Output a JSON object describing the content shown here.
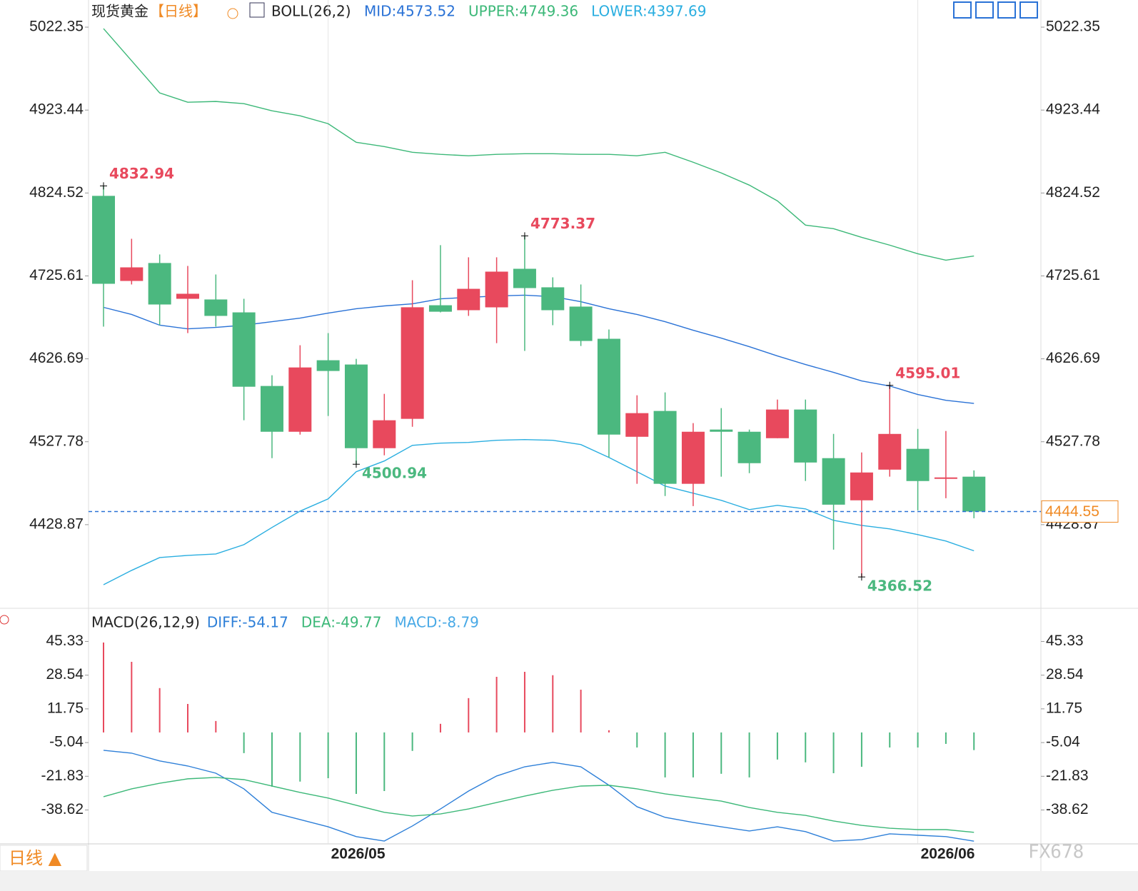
{
  "chart_data": [
    {
      "type": "candlestick",
      "title": "现货黄金",
      "period": "【日线】",
      "indicator": "BOLL(26,2)",
      "categories": [
        null,
        null,
        null,
        null,
        null,
        null,
        null,
        null,
        "2026/05",
        null,
        null,
        null,
        null,
        null,
        null,
        null,
        null,
        null,
        null,
        null,
        null,
        null,
        null,
        null,
        null,
        null,
        null,
        null,
        null,
        "2026/06",
        null,
        null
      ],
      "open": [
        4821.1,
        4719.6,
        4741.0,
        4698.3,
        4697.5,
        4682.1,
        4594.3,
        4539.7,
        4625.0,
        4619.9,
        4520.1,
        4555.1,
        4690.6,
        4684.7,
        4688.1,
        4734.1,
        4712.0,
        4689.0,
        4650.6,
        4533.7,
        4564.5,
        4477.6,
        4542.3,
        4539.7,
        4532.0,
        4566.2,
        4508.2,
        4457.9,
        4494.5,
        4519.3,
        4483.5,
        4486.1
      ],
      "high": [
        4832.94,
        4769.9,
        4751.2,
        4737.5,
        4727.3,
        4698.3,
        4607.1,
        4642.9,
        4657.4,
        4626.7,
        4584.9,
        4720.5,
        4762.3,
        4747.8,
        4747.8,
        4773.37,
        4723.9,
        4715.4,
        4661.7,
        4583.2,
        4586.6,
        4550.0,
        4567.9,
        4542.3,
        4578.1,
        4578.1,
        4537.1,
        4515.0,
        4595.01,
        4543.1,
        4540.6,
        4493.6
      ],
      "low": [
        4665.1,
        4715.4,
        4666.8,
        4657.4,
        4665.1,
        4553.4,
        4508.2,
        4536.3,
        4558.5,
        4500.94,
        4511.6,
        4545.7,
        4682.1,
        4677.9,
        4645.4,
        4636.1,
        4666.8,
        4642.0,
        4509.0,
        4477.6,
        4463.0,
        4451.0,
        4486.1,
        4490.3,
        4532.0,
        4481.0,
        4399.0,
        4366.52,
        4486.1,
        4445.9,
        4460.4,
        4436.5
      ],
      "close": [
        4716.2,
        4735.8,
        4691.5,
        4704.3,
        4677.9,
        4593.4,
        4539.7,
        4616.4,
        4612.2,
        4520.1,
        4553.4,
        4688.2,
        4682.9,
        4710.2,
        4730.7,
        4711.1,
        4684.7,
        4648.0,
        4536.3,
        4561.9,
        4477.6,
        4539.7,
        4539.7,
        4502.2,
        4566.2,
        4503.0,
        4452.7,
        4491.1,
        4537.1,
        4480.9,
        4485.2,
        4444.55
      ],
      "up_color": "#e8495d",
      "down_color": "#4bb87f",
      "high_value_labels": [
        "4832.94",
        null,
        null,
        null,
        null,
        null,
        null,
        null,
        null,
        null,
        null,
        null,
        null,
        null,
        null,
        "4773.37",
        null,
        null,
        null,
        null,
        null,
        null,
        null,
        null,
        null,
        null,
        null,
        null,
        "4595.01",
        null,
        null,
        null
      ],
      "low_value_labels": [
        null,
        null,
        null,
        null,
        null,
        null,
        null,
        null,
        null,
        "4500.94",
        null,
        null,
        null,
        null,
        null,
        null,
        null,
        null,
        null,
        null,
        null,
        null,
        null,
        null,
        null,
        null,
        null,
        "4366.52",
        null,
        null,
        null,
        null
      ],
      "series": [
        {
          "name": "MID:4573.52",
          "color": "#2a72d6",
          "values": [
            4688.1,
            4679.6,
            4666.8,
            4662.5,
            4664.2,
            4666.8,
            4671.0,
            4675.3,
            4681.2,
            4686.4,
            4689.8,
            4692.3,
            4698.3,
            4700.0,
            4701.7,
            4702.6,
            4700.9,
            4694.9,
            4686.4,
            4679.6,
            4671.0,
            4660.8,
            4651.4,
            4641.2,
            4630.1,
            4619.9,
            4610.5,
            4600.3,
            4594.3,
            4584.1,
            4577.2,
            4573.52
          ]
        },
        {
          "name": "UPPER:4749.36",
          "color": "#3cb878",
          "values": [
            5020.6,
            4982.3,
            4943.9,
            4932.8,
            4933.7,
            4931.1,
            4922.6,
            4916.6,
            4907.2,
            4885.0,
            4879.9,
            4873.1,
            4870.6,
            4868.9,
            4870.6,
            4871.4,
            4871.4,
            4870.6,
            4870.6,
            4868.9,
            4873.1,
            4861.2,
            4848.4,
            4833.9,
            4815.1,
            4786.2,
            4781.9,
            4771.6,
            4762.3,
            4752.0,
            4744.4,
            4749.36
          ]
        },
        {
          "name": "LOWER:4397.69",
          "color": "#2aaee0",
          "values": [
            4357.2,
            4374.3,
            4389.6,
            4392.2,
            4393.9,
            4405.0,
            4425.5,
            4445.0,
            4459.6,
            4492.0,
            4504.8,
            4523.5,
            4526.1,
            4527.0,
            4529.5,
            4530.4,
            4529.5,
            4524.4,
            4509.0,
            4492.0,
            4474.9,
            4466.4,
            4457.9,
            4446.8,
            4451.9,
            4447.7,
            4434.0,
            4428.0,
            4423.8,
            4417.0,
            4409.3,
            4397.69
          ]
        }
      ],
      "ylim": [
        4330.81,
        5050.49
      ],
      "yticks": [
        5022.35,
        4923.44,
        4824.52,
        4725.61,
        4626.69,
        4527.78,
        4428.87
      ],
      "last_price_color": "#f08a24"
    },
    {
      "type": "macd",
      "title": "MACD(26,12,9)",
      "ylim": [
        -54.8,
        51.9
      ],
      "yticks": [
        45.33,
        28.54,
        11.75,
        -5.04,
        -21.83,
        -38.62
      ],
      "up_color": "#e8495d",
      "down_color": "#4bb87f",
      "series": [
        {
          "name": "DIFF:-54.17",
          "color": "#2d7fd8",
          "values": [
            -8.9,
            -10.3,
            -14.2,
            -16.7,
            -20.3,
            -28.1,
            -39.8,
            -43.4,
            -47.0,
            -51.9,
            -54.1,
            -46.6,
            -38.1,
            -29.2,
            -21.7,
            -17.1,
            -14.9,
            -17.1,
            -26.3,
            -37.0,
            -42.3,
            -44.8,
            -47.0,
            -49.1,
            -47.0,
            -49.4,
            -54.1,
            -53.4,
            -50.5,
            -51.2,
            -51.9,
            -54.17
          ]
        },
        {
          "name": "DEA:-49.77",
          "color": "#3cb878",
          "values": [
            -32.0,
            -28.1,
            -25.3,
            -23.1,
            -22.4,
            -23.5,
            -26.7,
            -29.9,
            -32.7,
            -36.3,
            -39.8,
            -41.6,
            -40.6,
            -38.1,
            -34.9,
            -31.7,
            -28.8,
            -26.7,
            -26.3,
            -28.1,
            -30.6,
            -32.4,
            -34.2,
            -37.4,
            -39.8,
            -41.3,
            -44.1,
            -46.3,
            -47.7,
            -48.4,
            -48.4,
            -49.77
          ]
        },
        {
          "name": "MACD:-8.79",
          "color": "#48a9e6",
          "values": [
            44.8,
            35.2,
            22.1,
            14.2,
            5.7,
            -10.3,
            -27.0,
            -24.5,
            -22.8,
            -30.6,
            -29.2,
            -9.2,
            4.3,
            17.1,
            27.7,
            30.2,
            28.5,
            21.3,
            1.1,
            -7.5,
            -22.4,
            -22.4,
            -20.6,
            -22.4,
            -13.5,
            -14.9,
            -20.3,
            -17.1,
            -7.5,
            -7.5,
            -5.7,
            -8.79
          ]
        }
      ]
    }
  ],
  "period_button": "日线 ▲",
  "watermark": "FX678"
}
